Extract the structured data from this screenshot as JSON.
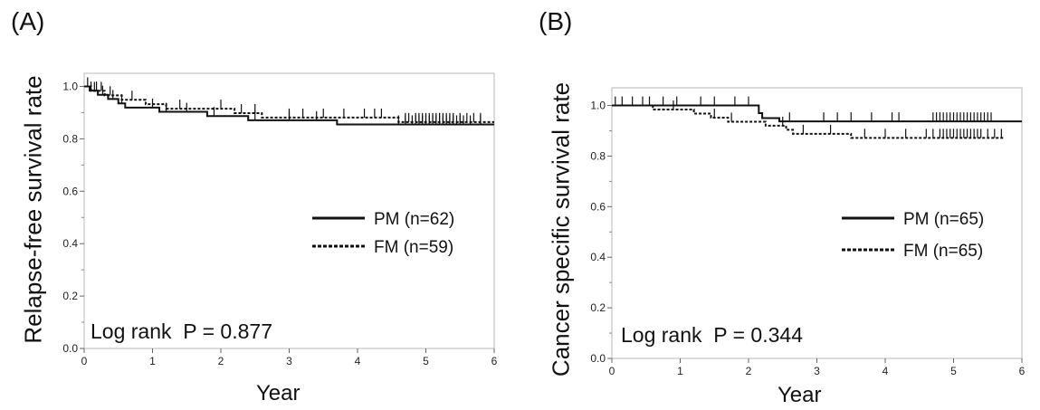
{
  "panels": [
    {
      "label": "(A)",
      "ylabel": "Relapse-free survival rate",
      "xlabel": "Year"
    },
    {
      "label": "(B)",
      "ylabel": "Cancer specific survival rate",
      "xlabel": "Year"
    }
  ],
  "chart_data": [
    {
      "type": "line",
      "panel": "(A)",
      "xlabel": "Year",
      "ylabel": "Relapse-free survival rate",
      "xlim": [
        0,
        6
      ],
      "ylim": [
        0,
        1.05
      ],
      "xticks": [
        "0",
        "1",
        "2",
        "3",
        "4",
        "5",
        "6"
      ],
      "yticks": [
        "0.0",
        "0.2",
        "0.4",
        "0.6",
        "0.8",
        "1.0"
      ],
      "legend_position": "right",
      "annotation": "Log rank  P = 0.877",
      "series": [
        {
          "name": "PM (n=62)",
          "style": "solid",
          "steps": [
            [
              0,
              1.0
            ],
            [
              0.08,
              0.984
            ],
            [
              0.2,
              0.968
            ],
            [
              0.35,
              0.952
            ],
            [
              0.5,
              0.935
            ],
            [
              0.6,
              0.919
            ],
            [
              1.1,
              0.903
            ],
            [
              1.8,
              0.887
            ],
            [
              2.4,
              0.871
            ],
            [
              3.7,
              0.855
            ],
            [
              6.0,
              0.855
            ]
          ],
          "censor_x": [
            0.1,
            0.18,
            0.27,
            0.42,
            0.55,
            1.0,
            1.2,
            1.5,
            1.9,
            2.5,
            3.0,
            3.4,
            4.6,
            4.7,
            4.8,
            4.85,
            4.9,
            4.95,
            5.0,
            5.05,
            5.1,
            5.15,
            5.2,
            5.25,
            5.3,
            5.35,
            5.4,
            5.45,
            5.5,
            5.55,
            5.65,
            5.8
          ]
        },
        {
          "name": "FM (n=59)",
          "style": "dotted",
          "steps": [
            [
              0,
              1.0
            ],
            [
              0.1,
              0.983
            ],
            [
              0.3,
              0.966
            ],
            [
              0.55,
              0.949
            ],
            [
              0.9,
              0.932
            ],
            [
              1.2,
              0.915
            ],
            [
              2.2,
              0.898
            ],
            [
              2.6,
              0.881
            ],
            [
              4.6,
              0.864
            ],
            [
              6.0,
              0.864
            ]
          ],
          "censor_x": [
            0.05,
            0.15,
            0.25,
            0.38,
            0.7,
            1.4,
            2.0,
            2.3,
            2.5,
            3.0,
            3.2,
            3.5,
            3.8,
            4.1,
            4.25,
            4.35,
            4.7,
            4.75,
            4.85,
            4.9,
            4.95,
            5.0,
            5.05,
            5.1,
            5.15,
            5.2,
            5.25,
            5.3,
            5.35,
            5.4,
            5.5,
            5.6,
            5.7,
            5.8
          ]
        }
      ]
    },
    {
      "type": "line",
      "panel": "(B)",
      "xlabel": "Year",
      "ylabel": "Cancer specific survival rate",
      "xlim": [
        0,
        6
      ],
      "ylim": [
        0,
        1.07
      ],
      "xticks": [
        "0",
        "1",
        "2",
        "3",
        "4",
        "5",
        "6"
      ],
      "yticks": [
        "0.0",
        "0.2",
        "0.4",
        "0.6",
        "0.8",
        "1.0"
      ],
      "legend_position": "right",
      "annotation": "Log rank  P = 0.344",
      "series": [
        {
          "name": "PM (n=65)",
          "style": "solid",
          "steps": [
            [
              0,
              1.0
            ],
            [
              2.15,
              0.97
            ],
            [
              2.2,
              0.95
            ],
            [
              2.45,
              0.937
            ],
            [
              6.0,
              0.937
            ]
          ],
          "censor_x": [
            0.05,
            0.15,
            0.3,
            0.45,
            0.55,
            0.75,
            0.95,
            1.3,
            1.5,
            1.8,
            2.0,
            2.6,
            3.1,
            3.3,
            3.5,
            3.8,
            4.1,
            4.2,
            4.7,
            4.75,
            4.8,
            4.85,
            4.9,
            4.95,
            5.0,
            5.05,
            5.1,
            5.15,
            5.2,
            5.25,
            5.3,
            5.35,
            5.4,
            5.45,
            5.5,
            5.55
          ]
        },
        {
          "name": "FM (n=65)",
          "style": "dotted",
          "steps": [
            [
              0,
              1.0
            ],
            [
              0.6,
              0.984
            ],
            [
              1.2,
              0.968
            ],
            [
              1.45,
              0.952
            ],
            [
              1.7,
              0.936
            ],
            [
              2.25,
              0.92
            ],
            [
              2.55,
              0.904
            ],
            [
              2.65,
              0.888
            ],
            [
              3.5,
              0.872
            ],
            [
              5.75,
              0.872
            ]
          ],
          "censor_x": [
            0.9,
            1.5,
            1.75,
            2.5,
            2.8,
            3.2,
            3.7,
            4.0,
            4.3,
            4.6,
            4.7,
            4.8,
            4.85,
            4.9,
            4.95,
            5.0,
            5.05,
            5.1,
            5.15,
            5.2,
            5.25,
            5.3,
            5.35,
            5.4,
            5.5,
            5.6,
            5.7
          ]
        }
      ]
    }
  ]
}
